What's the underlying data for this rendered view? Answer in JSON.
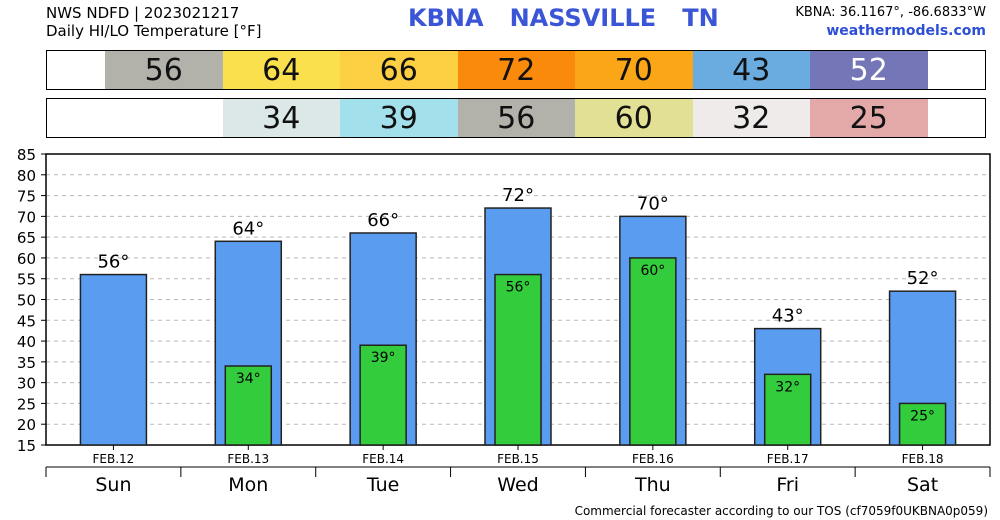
{
  "header": {
    "line1": "NWS NDFD | 2023021217",
    "line2": "Daily HI/LO Temperature [°F]",
    "station": "KBNA",
    "city": "NASSVILLE",
    "state": "TN",
    "coords": "KBNA: 36.1167°, -86.6833°W",
    "site": "weathermodels.com"
  },
  "hi_row": [
    {
      "text": "56",
      "color": "#b2b2aa"
    },
    {
      "text": "64",
      "color": "#fbe04e"
    },
    {
      "text": "66",
      "color": "#fdd043"
    },
    {
      "text": "72",
      "color": "#fa8a0c"
    },
    {
      "text": "70",
      "color": "#fba616"
    },
    {
      "text": "43",
      "color": "#6aacdf"
    },
    {
      "text": "52",
      "color": "#7576b8",
      "text_color": "#ffffff"
    }
  ],
  "lo_row": [
    {
      "text": "",
      "color": "#ffffff"
    },
    {
      "text": "34",
      "color": "#dce7e8"
    },
    {
      "text": "39",
      "color": "#a2e1eb"
    },
    {
      "text": "56",
      "color": "#b2b2aa"
    },
    {
      "text": "60",
      "color": "#e2e094"
    },
    {
      "text": "32",
      "color": "#efebea"
    },
    {
      "text": "25",
      "color": "#e2a9a8"
    }
  ],
  "chart_data": {
    "type": "bar",
    "categories": [
      "Sun",
      "Mon",
      "Tue",
      "Wed",
      "Thu",
      "Fri",
      "Sat"
    ],
    "dates": [
      "FEB.12",
      "FEB.13",
      "FEB.14",
      "FEB.15",
      "FEB.16",
      "FEB.17",
      "FEB.18"
    ],
    "series": [
      {
        "values": [
          56,
          64,
          66,
          72,
          70,
          43,
          52
        ],
        "color": "#5a9cf0"
      },
      {
        "values": [
          null,
          34,
          39,
          56,
          60,
          32,
          25
        ],
        "color": "#33cc3c"
      }
    ],
    "hi_labels": [
      "56°",
      "64°",
      "66°",
      "72°",
      "70°",
      "43°",
      "52°"
    ],
    "lo_labels": [
      "",
      "34°",
      "39°",
      "56°",
      "60°",
      "32°",
      "25°"
    ],
    "ylim": [
      15,
      85
    ],
    "yticks": [
      "15",
      "20",
      "25",
      "30",
      "35",
      "40",
      "45",
      "50",
      "55",
      "60",
      "65",
      "70",
      "75",
      "80",
      "85"
    ],
    "grid": true
  },
  "footer": "Commercial forecaster according to our TOS (cf7059f0UKBNA0p059)"
}
